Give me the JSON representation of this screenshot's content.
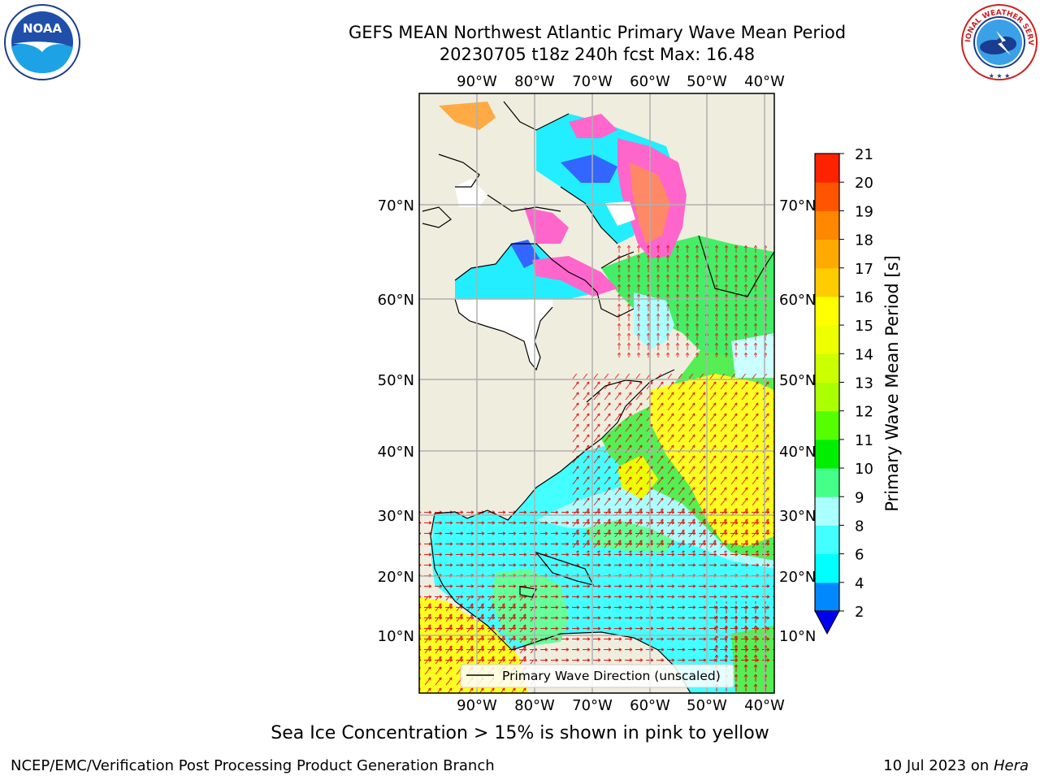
{
  "header": {
    "title_line1": "GEFS MEAN Northwest Atlantic Primary Wave Mean Period",
    "title_line2": "20230705 t18z 240h fcst   Max: 16.48"
  },
  "map": {
    "lon_labels": [
      "90°W",
      "80°W",
      "70°W",
      "60°W",
      "50°W",
      "40°W"
    ],
    "lat_labels": [
      "70°N",
      "60°N",
      "50°N",
      "40°N",
      "30°N",
      "20°N",
      "10°N"
    ],
    "legend_label": "Primary Wave Direction (unscaled)"
  },
  "colorbar": {
    "label": "Primary Wave Mean Period [s]",
    "ticks": [
      "2",
      "4",
      "6",
      "8",
      "9",
      "10",
      "11",
      "12",
      "13",
      "14",
      "15",
      "16",
      "17",
      "18",
      "19",
      "20",
      "21"
    ],
    "colors": [
      "#0033ff",
      "#0088ff",
      "#00ffff",
      "#44ffff",
      "#aaffff",
      "#44ff88",
      "#00ee00",
      "#55ff00",
      "#aaff00",
      "#ccff00",
      "#eeff00",
      "#ffff00",
      "#ffcc00",
      "#ffaa00",
      "#ff8800",
      "#ff5500",
      "#ff2200",
      "#ff0000"
    ],
    "under_color": "#0000ee"
  },
  "logos": {
    "noaa_text": "NOAA",
    "nws_text": "NATIONAL WEATHER SERVICE"
  },
  "footer": {
    "note": "Sea Ice Concentration > 15% is shown in pink to yellow",
    "left": "NCEP/EMC/Verification Post Processing Product Generation Branch",
    "right_date": "10 Jul 2023 on ",
    "right_machine": "Hera"
  }
}
